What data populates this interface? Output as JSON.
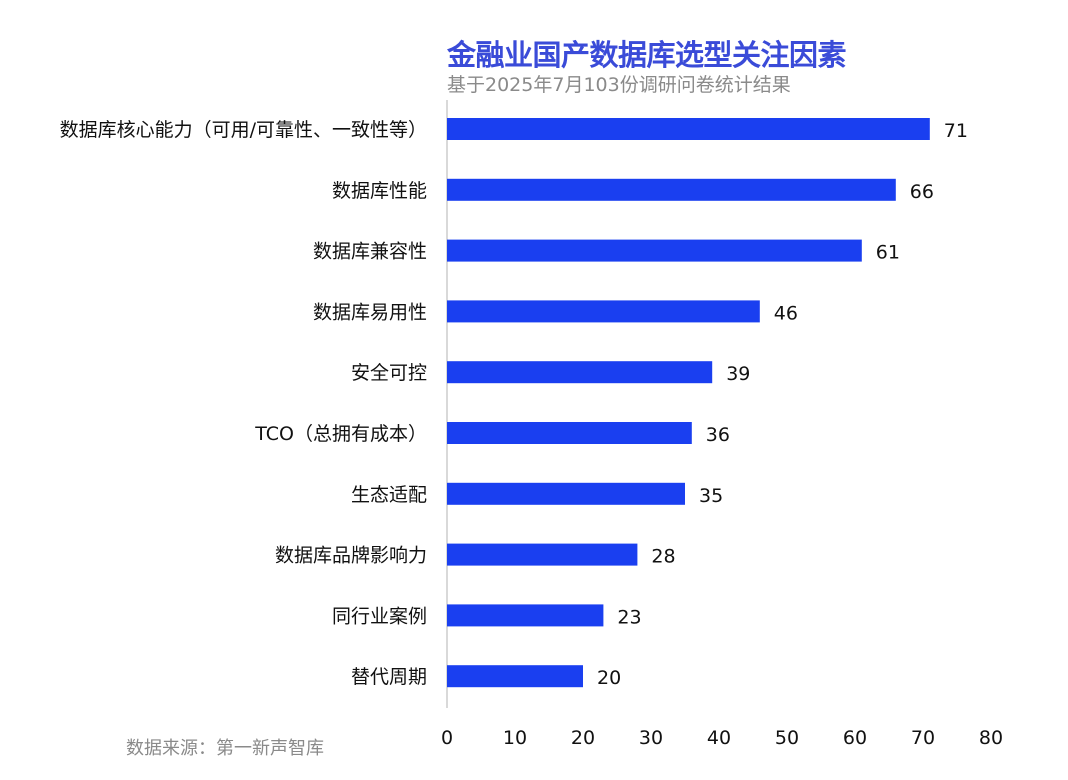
{
  "chart_data": {
    "type": "bar",
    "orientation": "horizontal",
    "title": "金融业国产数据库选型关注因素",
    "subtitle": "基于2025年7月103份调研问卷统计结果",
    "source": "数据来源：第一新声智库",
    "categories": [
      "数据库核心能力（可用/可靠性、一致性等）",
      "数据库性能",
      "数据库兼容性",
      "数据库易用性",
      "安全可控",
      "TCO（总拥有成本）",
      "生态适配",
      "数据库品牌影响力",
      "同行业案例",
      "替代周期"
    ],
    "values": [
      71,
      66,
      61,
      46,
      39,
      36,
      35,
      28,
      23,
      20
    ],
    "xlim": [
      0,
      80
    ],
    "xticks": [
      0,
      10,
      20,
      30,
      40,
      50,
      60,
      70,
      80
    ],
    "xlabel": "",
    "ylabel": "",
    "grid": false,
    "bar_color": "#1a3ff0"
  }
}
